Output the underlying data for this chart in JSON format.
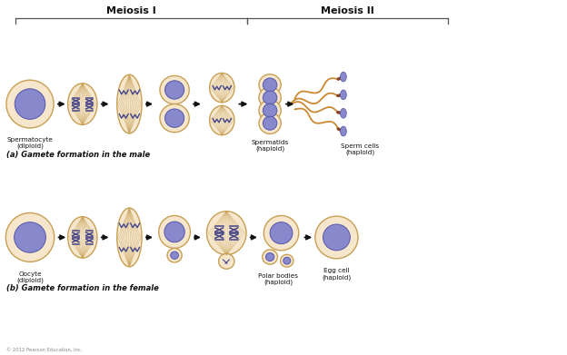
{
  "background_color": "#ffffff",
  "meiosis1_label": "Meiosis I",
  "meiosis2_label": "Meiosis II",
  "label_a": "(a) Gamete formation in the male",
  "label_b": "(b) Gamete formation in the female",
  "cell_fill": "#f5e6cc",
  "cell_edge": "#c8a055",
  "nucleus_fill": "#8888cc",
  "nucleus_edge": "#5555aa",
  "chrom_color": "#44448a",
  "spindle_color": "#c8a055",
  "arrow_color": "#111111",
  "sperm_head_fill": "#8888cc",
  "sperm_mid_fill": "#884422",
  "sperm_tail_color": "#cc8833",
  "copyright": "© 2012 Pearson Education, Inc.",
  "lbl_spermatocyte": "Spermatocyte\n(diploid)",
  "lbl_spermatids": "Spermatids\n(haploid)",
  "lbl_sperm_cells": "Sperm cells\n(haploid)",
  "lbl_oocyte": "Oocyte\n(diploid)",
  "lbl_polar": "Polar bodies\n(haploid)",
  "lbl_egg": "Egg cell\n(haploid)",
  "fig_w": 6.24,
  "fig_h": 3.91,
  "dpi": 100
}
